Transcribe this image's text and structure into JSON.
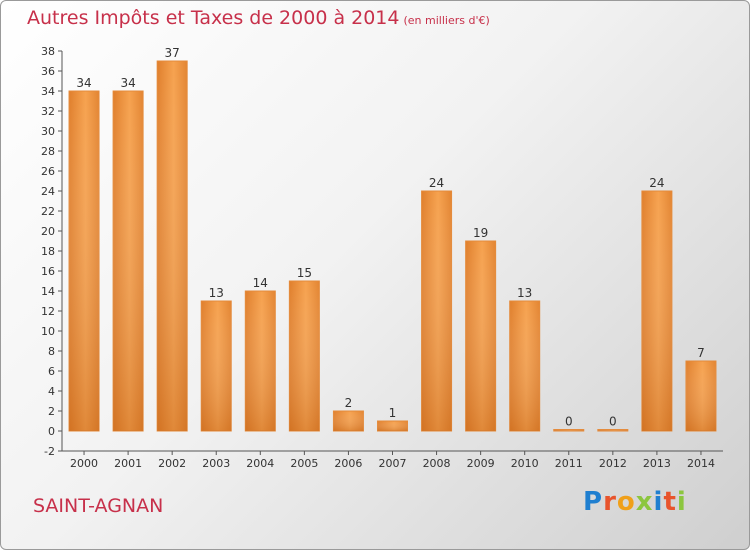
{
  "title": "Autres Impôts et Taxes de 2000 à 2014",
  "subtitle": "(en milliers d'€)",
  "location": "SAINT-AGNAN",
  "brand": "Proxiti",
  "colors": {
    "title": "#c7304a",
    "bar_light": "#f6a24f",
    "bar_dark": "#de7d28",
    "brand_letters": [
      "#1f7fd0",
      "#e8542c",
      "#f0a01a",
      "#8cc63f",
      "#1f7fd0",
      "#e8542c",
      "#8cc63f"
    ]
  },
  "chart_data": {
    "type": "bar",
    "categories": [
      "2000",
      "2001",
      "2002",
      "2003",
      "2004",
      "2005",
      "2006",
      "2007",
      "2008",
      "2009",
      "2010",
      "2011",
      "2012",
      "2013",
      "2014"
    ],
    "values": [
      34,
      34,
      37,
      13,
      14,
      15,
      2,
      1,
      24,
      19,
      13,
      0,
      0,
      24,
      7
    ],
    "ylim": [
      -2,
      38
    ],
    "yticks": [
      -2,
      0,
      2,
      4,
      6,
      8,
      10,
      12,
      14,
      16,
      18,
      20,
      22,
      24,
      26,
      28,
      30,
      32,
      34,
      36,
      38
    ],
    "grid": false,
    "data_labels": true
  }
}
